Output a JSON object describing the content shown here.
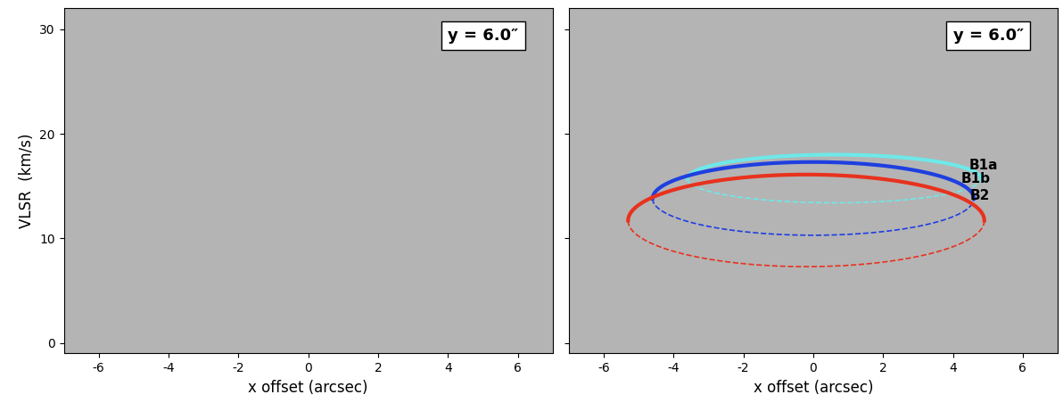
{
  "chart_data": [
    {
      "type": "position_velocity",
      "xlabel": "x offset (arcsec)",
      "ylabel": "VLSR  (km/s)",
      "annotation": "y = 6.0″",
      "xlim": [
        -7,
        7
      ],
      "ylim": [
        -1,
        32
      ],
      "xticks": [
        -6,
        -4,
        -2,
        0,
        2,
        4,
        6
      ],
      "yticks": [
        0,
        10,
        20,
        30
      ],
      "tick_labels": true,
      "ellipses": []
    },
    {
      "type": "position_velocity",
      "xlabel": "x offset (arcsec)",
      "annotation": "y = 6.0″",
      "xlim": [
        -7,
        7
      ],
      "ylim": [
        -1,
        32
      ],
      "xticks": [
        -6,
        -4,
        -2,
        0,
        2,
        4,
        6
      ],
      "yticks": [
        0,
        10,
        20,
        30
      ],
      "tick_labels": "x",
      "ellipses": [
        {
          "name": "B1a",
          "color": "#6ee8e8",
          "center": [
            0.6,
            15.7
          ],
          "width": 8.4,
          "height": 4.6
        },
        {
          "name": "B1b",
          "color": "#1f3fe0",
          "center": [
            0.0,
            13.8
          ],
          "width": 9.2,
          "height": 7.0
        },
        {
          "name": "B2",
          "color": "#e8321e",
          "center": [
            -0.2,
            11.7
          ],
          "width": 10.2,
          "height": 8.8
        }
      ]
    }
  ]
}
